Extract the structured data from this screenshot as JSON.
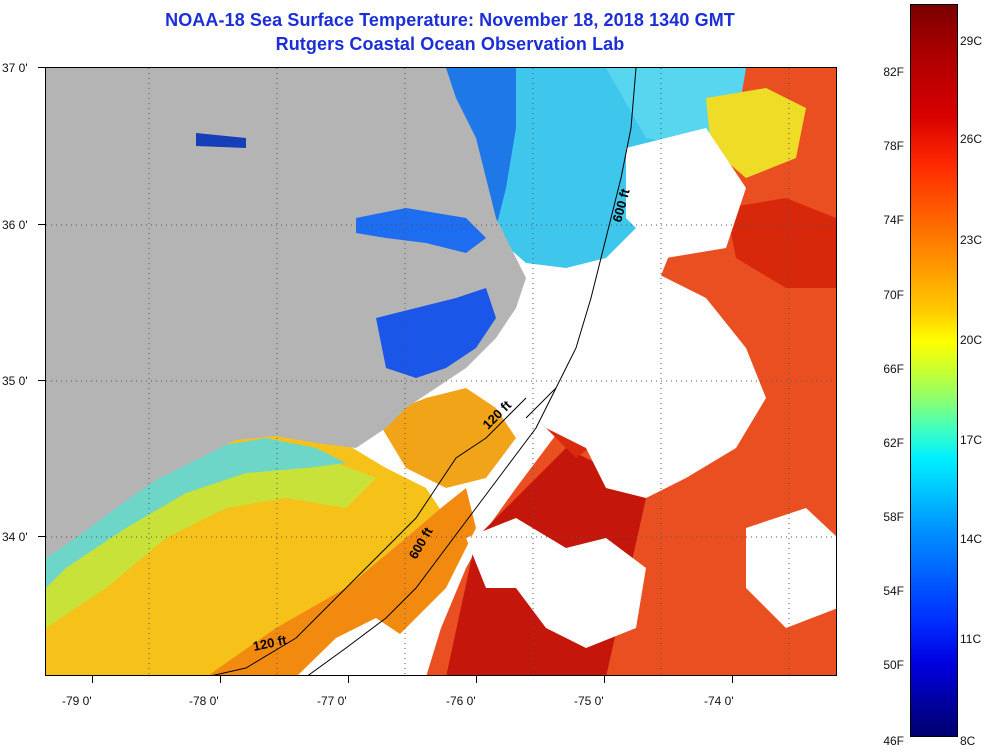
{
  "title": {
    "line1": "NOAA-18 Sea Surface Temperature:  November 18, 2018 1340 GMT",
    "line2": "Rutgers Coastal Ocean Observation Lab"
  },
  "map": {
    "lat_labels": [
      "37 0'",
      "36 0'",
      "35 0'",
      "34 0'"
    ],
    "lon_labels": [
      "-79 0'",
      "-78 0'",
      "-77 0'",
      "-76 0'",
      "-75 0'",
      "-74 0'"
    ],
    "contour_labels": [
      "600 ft",
      "120 ft",
      "600 ft",
      "120 ft"
    ],
    "colors": {
      "land": "#b4b4b4",
      "cloud": "#ffffff",
      "warm": "#e63312",
      "hot": "#b51a0a",
      "mid": "#f2b214",
      "cool": "#5ec8e6",
      "cold": "#1a4fe0"
    }
  },
  "colorbar": {
    "fahrenheit": [
      "82F",
      "78F",
      "74F",
      "70F",
      "66F",
      "62F",
      "58F",
      "54F",
      "50F",
      "46F"
    ],
    "celsius": [
      "29C",
      "26C",
      "23C",
      "20C",
      "17C",
      "14C",
      "11C",
      "8C"
    ]
  }
}
